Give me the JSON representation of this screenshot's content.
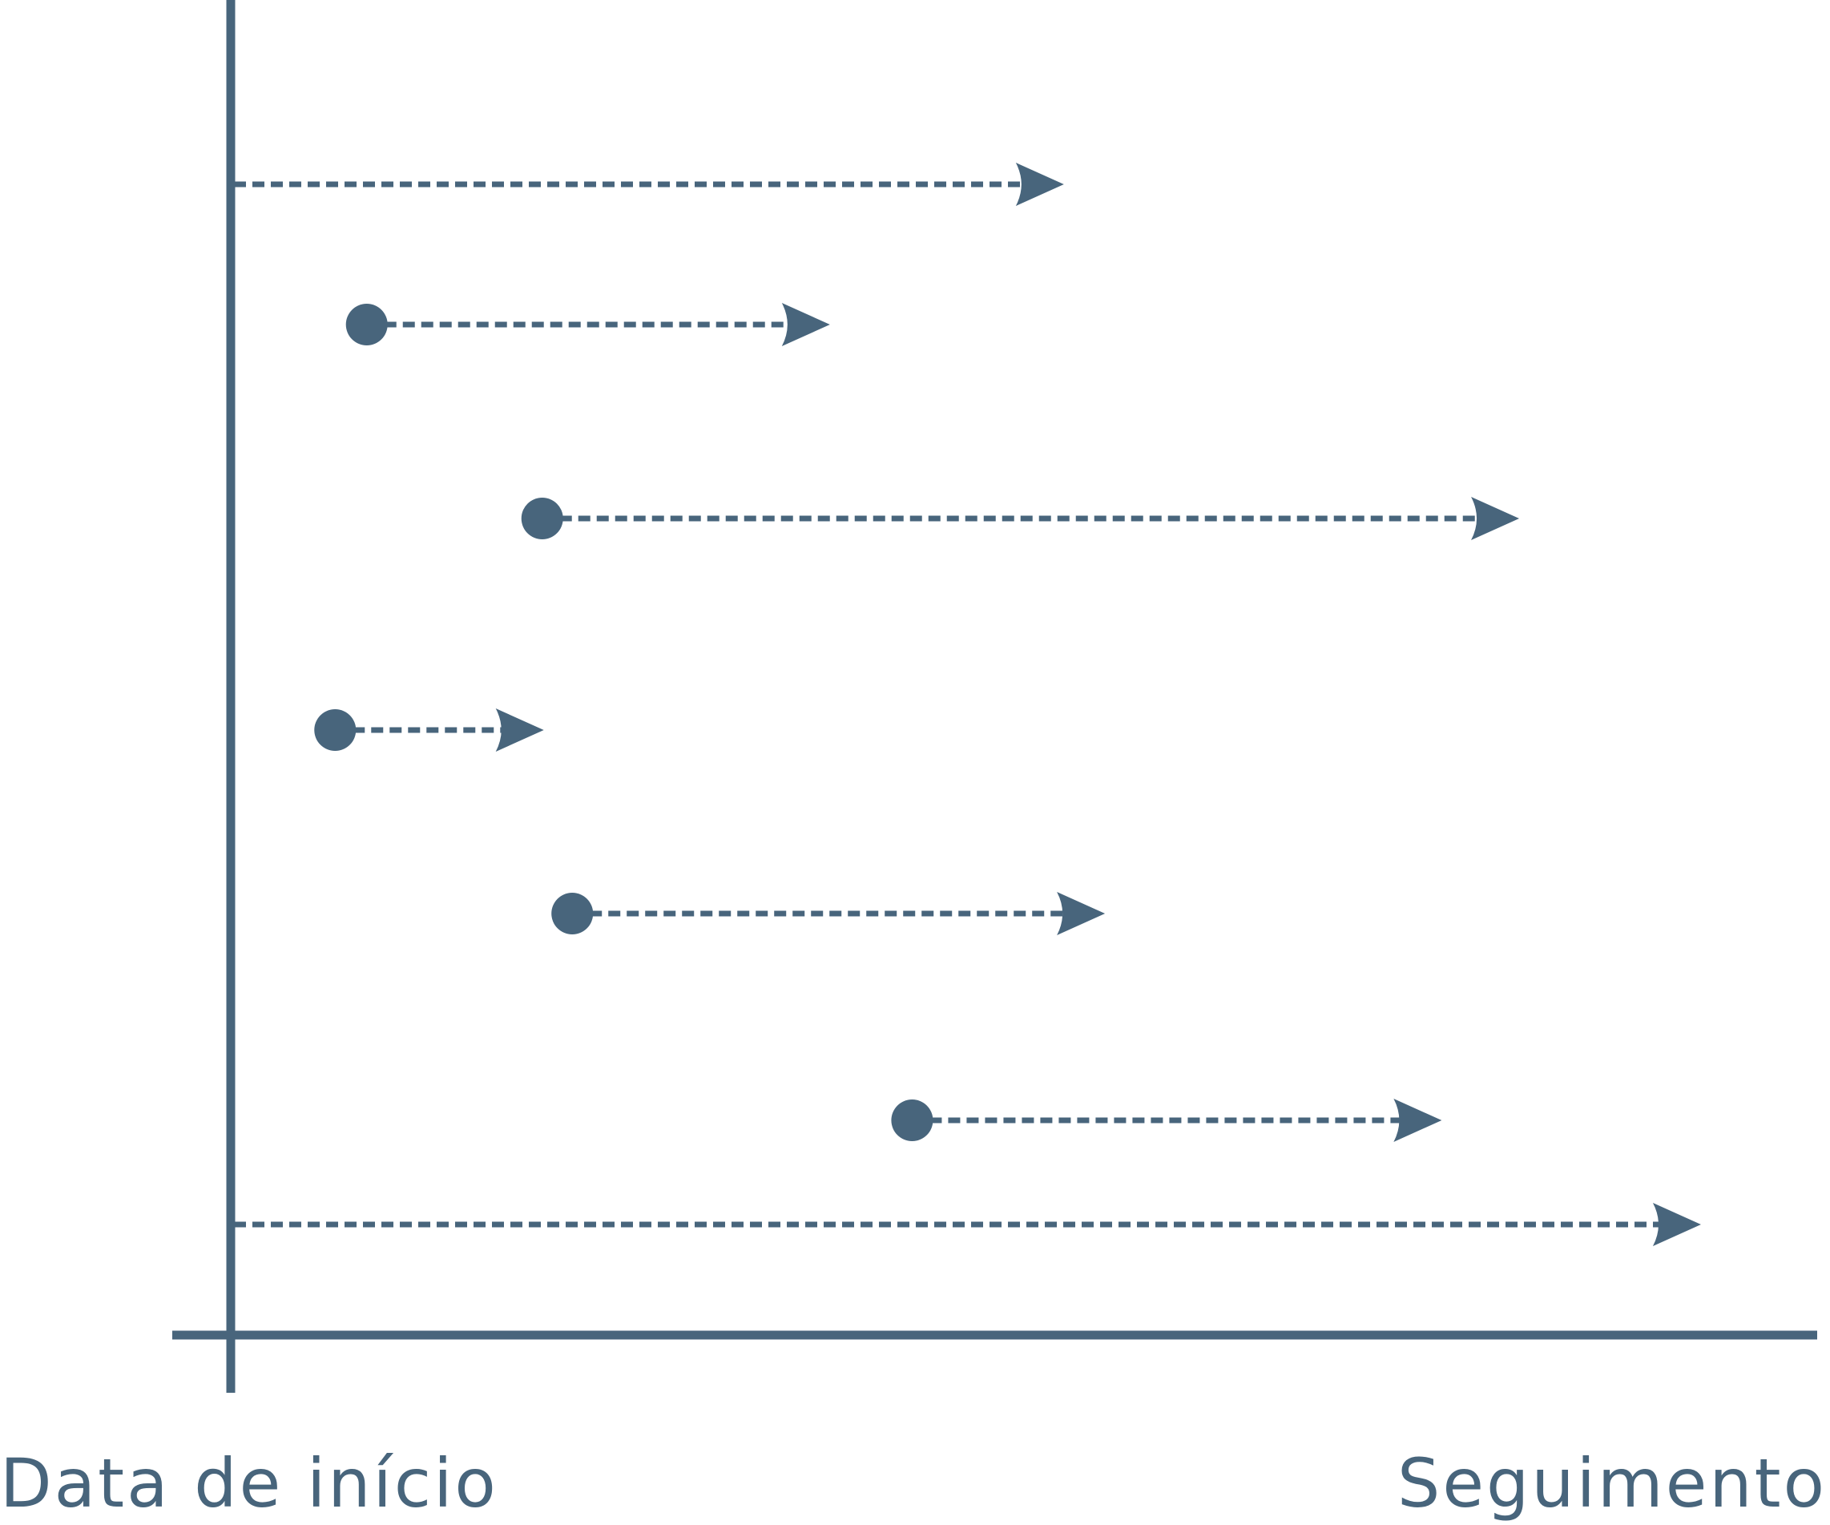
{
  "colors": {
    "ink": "#48657c",
    "background": "#ffffff"
  },
  "axes": {
    "x_start_label": "Data de início",
    "x_end_label": "Seguimento"
  },
  "icons": {
    "start_marker": "filled-circle",
    "arrowhead": "arrowhead-right"
  },
  "timelines": [
    {
      "id": 1,
      "start": 0.0,
      "end": 0.525,
      "has_start_marker": false
    },
    {
      "id": 2,
      "start": 0.084,
      "end": 0.377,
      "has_start_marker": true
    },
    {
      "id": 3,
      "start": 0.195,
      "end": 0.813,
      "has_start_marker": true
    },
    {
      "id": 4,
      "start": 0.064,
      "end": 0.196,
      "has_start_marker": true
    },
    {
      "id": 5,
      "start": 0.214,
      "end": 0.551,
      "has_start_marker": true
    },
    {
      "id": 6,
      "start": 0.429,
      "end": 0.764,
      "has_start_marker": true
    },
    {
      "id": 7,
      "start": 0.0,
      "end": 0.928,
      "has_start_marker": false
    }
  ]
}
